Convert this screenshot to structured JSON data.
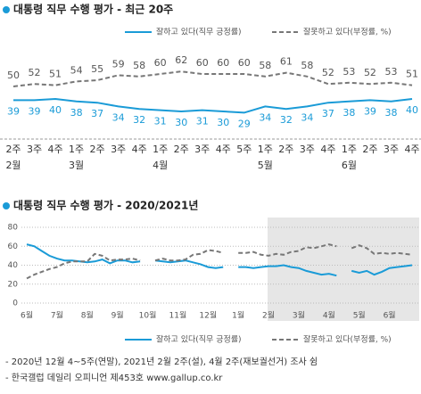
{
  "chart_data": [
    {
      "type": "line",
      "title": "대통령 직무 수행 평가 - 최근 20주",
      "categories": [
        "2주",
        "3주",
        "4주",
        "1주",
        "2주",
        "3주",
        "4주",
        "1주",
        "2주",
        "3주",
        "4주",
        "5주",
        "1주",
        "2주",
        "3주",
        "4주",
        "1주",
        "2주",
        "3주",
        "4주"
      ],
      "months": [
        "2월",
        null,
        null,
        "3월",
        null,
        null,
        null,
        "4월",
        null,
        null,
        null,
        null,
        "5월",
        null,
        null,
        null,
        "6월",
        null,
        null,
        null
      ],
      "series": [
        {
          "name": "잘하고 있다(직무 긍정률)",
          "color": "#1a9bd7",
          "dash": false,
          "values": [
            39,
            39,
            40,
            38,
            37,
            34,
            32,
            31,
            30,
            31,
            30,
            29,
            34,
            32,
            34,
            37,
            38,
            39,
            38,
            40
          ]
        },
        {
          "name": "잘못하고 있다(부정률, %)",
          "color": "#777777",
          "dash": true,
          "values": [
            50,
            52,
            51,
            54,
            55,
            59,
            58,
            60,
            62,
            60,
            60,
            60,
            58,
            61,
            58,
            52,
            53,
            52,
            53,
            51
          ]
        }
      ]
    },
    {
      "type": "line",
      "title": "대통령 직무 수행 평가 - 2020/2021년",
      "categories": [
        "6월",
        null,
        null,
        null,
        "7월",
        null,
        null,
        null,
        "8월",
        null,
        null,
        null,
        "9월",
        null,
        null,
        null,
        "10월",
        null,
        null,
        null,
        "11월",
        null,
        null,
        null,
        "12월",
        null,
        null,
        null,
        "1월",
        null,
        null,
        null,
        "2월",
        null,
        null,
        null,
        "3월",
        null,
        null,
        null,
        "4월",
        null,
        null,
        null,
        "5월",
        null,
        null,
        null,
        "6월",
        null,
        null,
        null
      ],
      "ylim": [
        0,
        80
      ],
      "yticks": [
        0,
        20,
        40,
        60,
        80
      ],
      "grid": true,
      "series": [
        {
          "name": "잘하고 있다(직무 긍정률)",
          "color": "#1a9bd7",
          "dash": false,
          "values": [
            62,
            60,
            55,
            50,
            47,
            45,
            45,
            44,
            43,
            44,
            46,
            42,
            45,
            45,
            43,
            44,
            null,
            45,
            44,
            43,
            44,
            45,
            43,
            41,
            38,
            37,
            38,
            null,
            38,
            38,
            37,
            38,
            39,
            39,
            40,
            38,
            37,
            34,
            32,
            30,
            31,
            29,
            null,
            34,
            32,
            34,
            30,
            33,
            37,
            38,
            39,
            40
          ]
        },
        {
          "name": "잘못하고 있다(부정률, %)",
          "color": "#777777",
          "dash": true,
          "values": [
            26,
            30,
            33,
            36,
            38,
            42,
            44,
            44,
            44,
            52,
            50,
            45,
            46,
            46,
            47,
            45,
            null,
            45,
            47,
            45,
            45,
            46,
            51,
            52,
            56,
            55,
            53,
            null,
            53,
            53,
            54,
            51,
            50,
            52,
            51,
            54,
            55,
            59,
            58,
            60,
            62,
            60,
            null,
            58,
            61,
            58,
            52,
            53,
            52,
            53,
            52,
            51
          ]
        }
      ]
    }
  ],
  "notes": [
    "- 2020년 12월 4~5주(연말), 2021년 2월 2주(설), 4월 2주(재보궐선거) 조사 쉼",
    "- 한국갤럽 데일리 오피니언 제453호 www.gallup.co.kr"
  ]
}
